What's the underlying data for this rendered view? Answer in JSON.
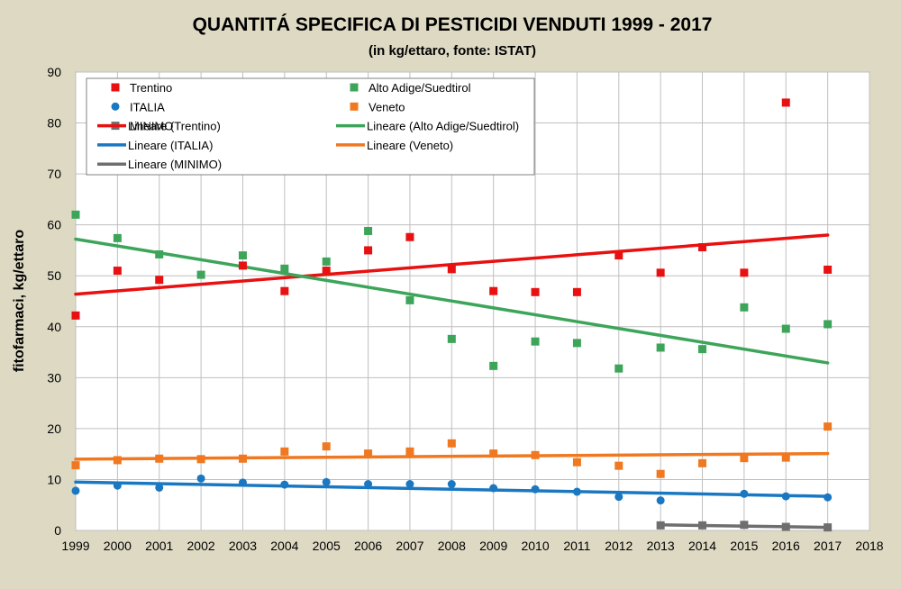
{
  "chart_data": {
    "type": "scatter",
    "title": "QUANTITÁ SPECIFICA DI PESTICIDI VENDUTI 1999 - 2017",
    "subtitle": "(in kg/ettaro, fonte: ISTAT)",
    "xlabel": "",
    "ylabel": "fitofarmaci, kg/ettaro",
    "xlim": [
      1999,
      2018
    ],
    "ylim": [
      0,
      90
    ],
    "xticks": [
      "1999",
      "2000",
      "2001",
      "2002",
      "2003",
      "2004",
      "2005",
      "2006",
      "2007",
      "2008",
      "2009",
      "2010",
      "2011",
      "2012",
      "2013",
      "2014",
      "2015",
      "2016",
      "2017",
      "2018"
    ],
    "yticks": [
      "0",
      "10",
      "20",
      "30",
      "40",
      "50",
      "60",
      "70",
      "80",
      "90"
    ],
    "grid": true,
    "legend_position": "top-left",
    "series": [
      {
        "name": "Trentino",
        "color": "#e81010",
        "marker": "square",
        "x": [
          1999,
          2000,
          2001,
          2002,
          2003,
          2004,
          2005,
          2006,
          2007,
          2008,
          2009,
          2010,
          2011,
          2012,
          2013,
          2014,
          2015,
          2016,
          2017
        ],
        "y": [
          42.2,
          51.0,
          49.2,
          null,
          52.0,
          47.0,
          51.0,
          55.0,
          57.6,
          51.3,
          47.0,
          46.8,
          46.8,
          54.0,
          50.6,
          55.6,
          50.6,
          84.0,
          51.2
        ]
      },
      {
        "name": "Alto Adige/Suedtirol",
        "color": "#3da55a",
        "marker": "square",
        "x": [
          1999,
          2000,
          2001,
          2002,
          2003,
          2004,
          2005,
          2006,
          2007,
          2008,
          2009,
          2010,
          2011,
          2012,
          2013,
          2014,
          2015,
          2016,
          2017
        ],
        "y": [
          62.0,
          57.4,
          54.2,
          50.2,
          54.0,
          51.4,
          52.8,
          58.8,
          45.2,
          37.6,
          32.3,
          37.1,
          36.8,
          31.8,
          35.9,
          35.6,
          43.8,
          39.6,
          40.5
        ]
      },
      {
        "name": "ITALIA",
        "color": "#1a78c2",
        "marker": "circle",
        "x": [
          1999,
          2000,
          2001,
          2002,
          2003,
          2004,
          2005,
          2006,
          2007,
          2008,
          2009,
          2010,
          2011,
          2012,
          2013,
          2014,
          2015,
          2016,
          2017
        ],
        "y": [
          7.8,
          8.8,
          8.4,
          10.2,
          9.4,
          9.0,
          9.5,
          9.1,
          9.1,
          9.1,
          8.3,
          8.1,
          7.6,
          6.6,
          5.9,
          null,
          7.2,
          6.7,
          6.5
        ]
      },
      {
        "name": "Veneto",
        "color": "#f07820",
        "marker": "square",
        "x": [
          1999,
          2000,
          2001,
          2002,
          2003,
          2004,
          2005,
          2006,
          2007,
          2008,
          2009,
          2010,
          2011,
          2012,
          2013,
          2014,
          2015,
          2016,
          2017
        ],
        "y": [
          12.8,
          13.8,
          14.1,
          14.0,
          14.1,
          15.5,
          16.5,
          15.1,
          15.5,
          17.1,
          15.1,
          14.8,
          13.4,
          12.7,
          11.1,
          13.2,
          14.2,
          14.3,
          20.4
        ]
      },
      {
        "name": "MINIMO",
        "color": "#6e6e6e",
        "marker": "square",
        "x": [
          2013,
          2014,
          2015,
          2016,
          2017
        ],
        "y": [
          1.0,
          1.0,
          1.1,
          0.7,
          0.6
        ]
      }
    ],
    "trendlines": [
      {
        "name": "Lineare (Trentino)",
        "color": "#e81010",
        "x": [
          1999,
          2017
        ],
        "y": [
          46.4,
          58.0
        ]
      },
      {
        "name": "Lineare (Alto Adige/Suedtirol)",
        "color": "#3da55a",
        "x": [
          1999,
          2017
        ],
        "y": [
          57.2,
          32.9
        ]
      },
      {
        "name": "Lineare (ITALIA)",
        "color": "#1a78c2",
        "x": [
          1999,
          2017
        ],
        "y": [
          9.5,
          6.7
        ]
      },
      {
        "name": "Lineare (Veneto)",
        "color": "#f07820",
        "x": [
          1999,
          2017
        ],
        "y": [
          14.0,
          15.1
        ]
      },
      {
        "name": "Lineare (MINIMO)",
        "color": "#6e6e6e",
        "x": [
          2013,
          2017
        ],
        "y": [
          1.1,
          0.6
        ]
      }
    ],
    "legend_entries": [
      {
        "label": "Trentino",
        "kind": "marker",
        "marker": "square",
        "color": "#e81010"
      },
      {
        "label": "Alto Adige/Suedtirol",
        "kind": "marker",
        "marker": "square",
        "color": "#3da55a"
      },
      {
        "label": "ITALIA",
        "kind": "marker",
        "marker": "circle",
        "color": "#1a78c2"
      },
      {
        "label": "Veneto",
        "kind": "marker",
        "marker": "square",
        "color": "#f07820"
      },
      {
        "label": "MINIMO",
        "kind": "marker",
        "marker": "square",
        "color": "#6e6e6e"
      },
      {
        "label": "Lineare (Trentino)",
        "kind": "line",
        "color": "#e81010"
      },
      {
        "label": "Lineare (Alto Adige/Suedtirol)",
        "kind": "line",
        "color": "#3da55a"
      },
      {
        "label": "Lineare (ITALIA)",
        "kind": "line",
        "color": "#1a78c2"
      },
      {
        "label": "Lineare (Veneto)",
        "kind": "line",
        "color": "#f07820"
      },
      {
        "label": "Lineare (MINIMO)",
        "kind": "line",
        "color": "#6e6e6e"
      }
    ]
  }
}
